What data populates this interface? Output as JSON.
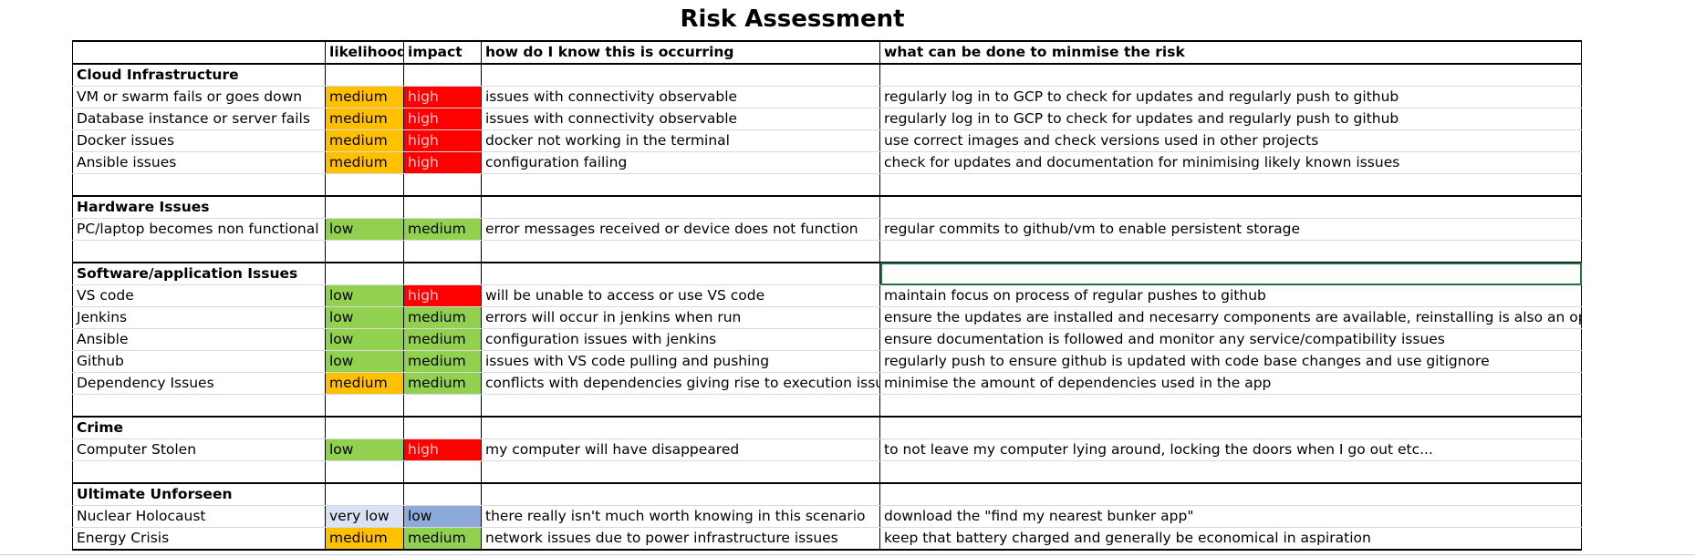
{
  "title": "Risk Assessment",
  "headers": [
    "",
    "likelihood",
    "impact",
    "how do I know this is occurring",
    "what can be done to minmise the risk"
  ],
  "colors": {
    "medium_likelihood": "#ffc000",
    "high_impact": "#ff0000",
    "low_green": "#92d050",
    "very_low": "#dae3f3",
    "low_blue": "#8eaadb"
  },
  "rows": [
    {
      "kind": "section",
      "cells": [
        "Cloud Infrastructure",
        "",
        "",
        "",
        ""
      ]
    },
    {
      "kind": "data",
      "cells": [
        "VM or swarm fails or goes down",
        "medium",
        "high",
        "issues with connectivity observable",
        "regularly log in to GCP to check for updates and regularly push to github"
      ]
    },
    {
      "kind": "data",
      "cells": [
        "Database instance or server fails",
        "medium",
        "high",
        "issues with connectivity observable",
        "regularly log in to GCP to check for updates and regularly push to github"
      ]
    },
    {
      "kind": "data",
      "cells": [
        "Docker issues",
        "medium",
        "high",
        "docker not working in the terminal",
        "use correct images and check versions used in other projects"
      ]
    },
    {
      "kind": "data",
      "cells": [
        "Ansible issues",
        "medium",
        "high",
        "configuration failing",
        "check for updates and documentation for minimising likely known issues"
      ]
    },
    {
      "kind": "blank",
      "cells": [
        "",
        "",
        "",
        "",
        ""
      ]
    },
    {
      "kind": "section",
      "cells": [
        "Hardware Issues",
        "",
        "",
        "",
        ""
      ]
    },
    {
      "kind": "data",
      "cells": [
        "PC/laptop becomes non functional",
        "low",
        "medium",
        "error messages received or device does not function",
        "regular commits to github/vm to enable persistent storage"
      ]
    },
    {
      "kind": "blank",
      "cells": [
        "",
        "",
        "",
        "",
        ""
      ]
    },
    {
      "kind": "section",
      "cells": [
        "Software/application Issues",
        "",
        "",
        "",
        ""
      ]
    },
    {
      "kind": "data",
      "cells": [
        "VS code",
        "low",
        "high",
        "will be unable to access or use VS code",
        "maintain focus on process of regular pushes to github"
      ]
    },
    {
      "kind": "data",
      "cells": [
        "Jenkins",
        "low",
        "medium",
        "errors will occur in jenkins when run",
        "ensure the updates are installed and necesarry components are available, reinstalling is also an option"
      ]
    },
    {
      "kind": "data",
      "cells": [
        "Ansible",
        "low",
        "medium",
        "configuration issues with jenkins",
        "ensure documentation is followed and monitor any service/compatibility issues"
      ]
    },
    {
      "kind": "data",
      "cells": [
        "Github",
        "low",
        "medium",
        "issues with VS code pulling and pushing",
        "regularly push to ensure github is updated with code base changes and use gitignore"
      ]
    },
    {
      "kind": "data",
      "cells": [
        "Dependency Issues",
        "medium",
        "medium",
        "conflicts with dependencies giving rise to execution issues",
        "minimise the amount of dependencies used in the app"
      ]
    },
    {
      "kind": "blank",
      "cells": [
        "",
        "",
        "",
        "",
        ""
      ]
    },
    {
      "kind": "section",
      "cells": [
        "Crime",
        "",
        "",
        "",
        ""
      ]
    },
    {
      "kind": "data",
      "cells": [
        "Computer Stolen",
        "low",
        "high",
        "my computer will have disappeared",
        "to not leave my computer lying around, locking the doors when I go out etc..."
      ]
    },
    {
      "kind": "blank",
      "cells": [
        "",
        "",
        "",
        "",
        ""
      ]
    },
    {
      "kind": "section",
      "cells": [
        "Ultimate Unforseen",
        "",
        "",
        "",
        ""
      ]
    },
    {
      "kind": "data",
      "cells": [
        "Nuclear Holocaust",
        "very low",
        "low",
        "there really isn't much worth knowing in this scenario",
        "download the \"find my nearest bunker app\""
      ]
    },
    {
      "kind": "data",
      "cells": [
        "Energy Crisis",
        "medium",
        "medium",
        "network issues due to power infrastructure issues",
        "keep that battery charged and generally be economical in aspiration"
      ]
    }
  ]
}
